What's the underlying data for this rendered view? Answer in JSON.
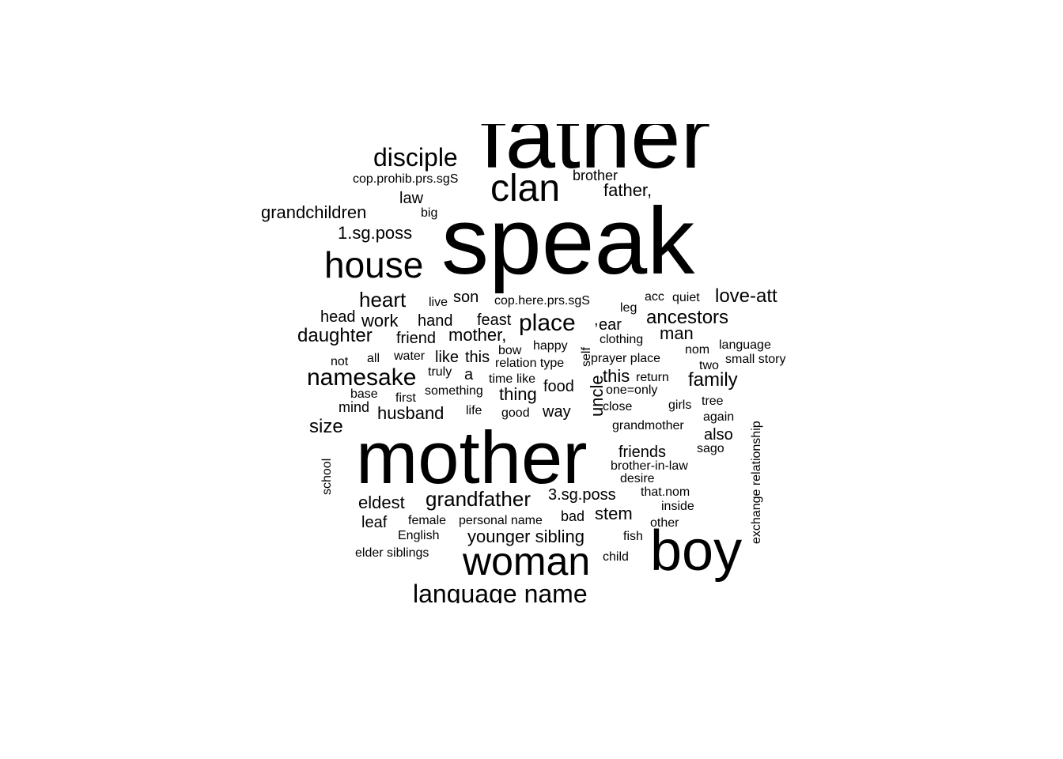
{
  "words": [
    {
      "text": "father"
    },
    {
      "text": "speak"
    },
    {
      "text": "mother"
    },
    {
      "text": "boy"
    },
    {
      "text": "woman"
    },
    {
      "text": "house"
    },
    {
      "text": "clan"
    },
    {
      "text": "disciple"
    },
    {
      "text": "language name"
    },
    {
      "text": "namesake"
    },
    {
      "text": "place"
    },
    {
      "text": "grandfather"
    },
    {
      "text": "heart"
    },
    {
      "text": "love-att"
    },
    {
      "text": "ancestors"
    },
    {
      "text": "family"
    },
    {
      "text": "daughter"
    },
    {
      "text": "size"
    },
    {
      "text": "grandchildren"
    },
    {
      "text": "1.sg.poss"
    },
    {
      "text": "eldest"
    },
    {
      "text": "husband"
    },
    {
      "text": "mother,"
    },
    {
      "text": "father,"
    },
    {
      "text": "younger sibling"
    },
    {
      "text": "stem"
    },
    {
      "text": "work"
    },
    {
      "text": "man"
    },
    {
      "text": "friends"
    },
    {
      "text": "3.sg.poss"
    },
    {
      "text": "thing"
    },
    {
      "text": "feast"
    },
    {
      "text": "son"
    },
    {
      "text": "law"
    },
    {
      "text": "hand"
    },
    {
      "text": "friend"
    },
    {
      "text": "this"
    },
    {
      "text": "like"
    },
    {
      "text": "this"
    },
    {
      "text": "food"
    },
    {
      "text": "way"
    },
    {
      "text": "ear"
    },
    {
      "text": "leaf"
    },
    {
      "text": "also"
    },
    {
      "text": "head"
    },
    {
      "text": "uncle"
    },
    {
      "text": "mind"
    },
    {
      "text": "a"
    },
    {
      "text": "brother"
    },
    {
      "text": "cop.prohib.prs.sgS"
    },
    {
      "text": "big"
    },
    {
      "text": "live"
    },
    {
      "text": "cop.here.prs.sgS"
    },
    {
      "text": "leg"
    },
    {
      "text": "acc"
    },
    {
      "text": "quiet"
    },
    {
      "text": "clothing"
    },
    {
      "text": "happy"
    },
    {
      "text": "bow"
    },
    {
      "text": "nom"
    },
    {
      "text": "language"
    },
    {
      "text": "all"
    },
    {
      "text": "not"
    },
    {
      "text": "water"
    },
    {
      "text": "relation type"
    },
    {
      "text": "prayer place"
    },
    {
      "text": "two"
    },
    {
      "text": "small story"
    },
    {
      "text": "truly"
    },
    {
      "text": "time"
    },
    {
      "text": "like"
    },
    {
      "text": "return"
    },
    {
      "text": "one=only"
    },
    {
      "text": "base"
    },
    {
      "text": "first"
    },
    {
      "text": "something"
    },
    {
      "text": "life"
    },
    {
      "text": "good"
    },
    {
      "text": "close"
    },
    {
      "text": "girls"
    },
    {
      "text": "tree"
    },
    {
      "text": "again"
    },
    {
      "text": "grandmother"
    },
    {
      "text": "sago"
    },
    {
      "text": "brother-in-law"
    },
    {
      "text": "desire"
    },
    {
      "text": "that.nom"
    },
    {
      "text": "inside"
    },
    {
      "text": "female"
    },
    {
      "text": "personal name"
    },
    {
      "text": "bad"
    },
    {
      "text": "other"
    },
    {
      "text": "English"
    },
    {
      "text": "fish"
    },
    {
      "text": "elder siblings"
    },
    {
      "text": "child"
    },
    {
      "text": "self"
    },
    {
      "text": "school"
    },
    {
      "text": "exchange relationship"
    },
    {
      "text": ","
    }
  ]
}
